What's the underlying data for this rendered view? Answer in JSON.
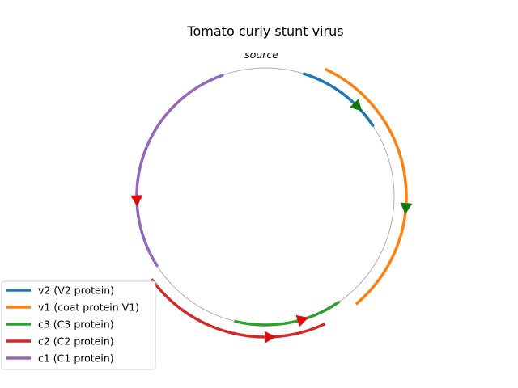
{
  "title": "Tomato curly stunt virus",
  "origin_label": "source",
  "backbone_color": "#b0b0b0",
  "legend_position": "lower-left",
  "features": [
    {
      "name": "v2 (V2 protein)",
      "color": "#1f77b4",
      "start_deg": 17,
      "end_deg": 57,
      "track": 0,
      "direction": "forward",
      "arrow_deg": 46,
      "arrow_color": "#107a10"
    },
    {
      "name": "v1 (coat protein V1)",
      "color": "#ff7f0e",
      "start_deg": 25,
      "end_deg": 140,
      "track": 1,
      "direction": "forward",
      "arrow_deg": 95,
      "arrow_color": "#107a10"
    },
    {
      "name": "c3 (C3 protein)",
      "color": "#2ca02c",
      "start_deg": 145,
      "end_deg": 194,
      "track": 0,
      "direction": "reverse",
      "arrow_deg": 163,
      "arrow_color": "#dd0d0d"
    },
    {
      "name": "c2 (C2 protein)",
      "color": "#d62728",
      "start_deg": 155,
      "end_deg": 234,
      "track": 1,
      "direction": "reverse",
      "arrow_deg": 178,
      "arrow_color": "#dd0d0d"
    },
    {
      "name": "c1 (C1 protein)",
      "color": "#9467bd",
      "start_deg": 237,
      "end_deg": 341,
      "track": 0,
      "direction": "reverse",
      "arrow_deg": 268,
      "arrow_color": "#dd0d0d"
    }
  ]
}
